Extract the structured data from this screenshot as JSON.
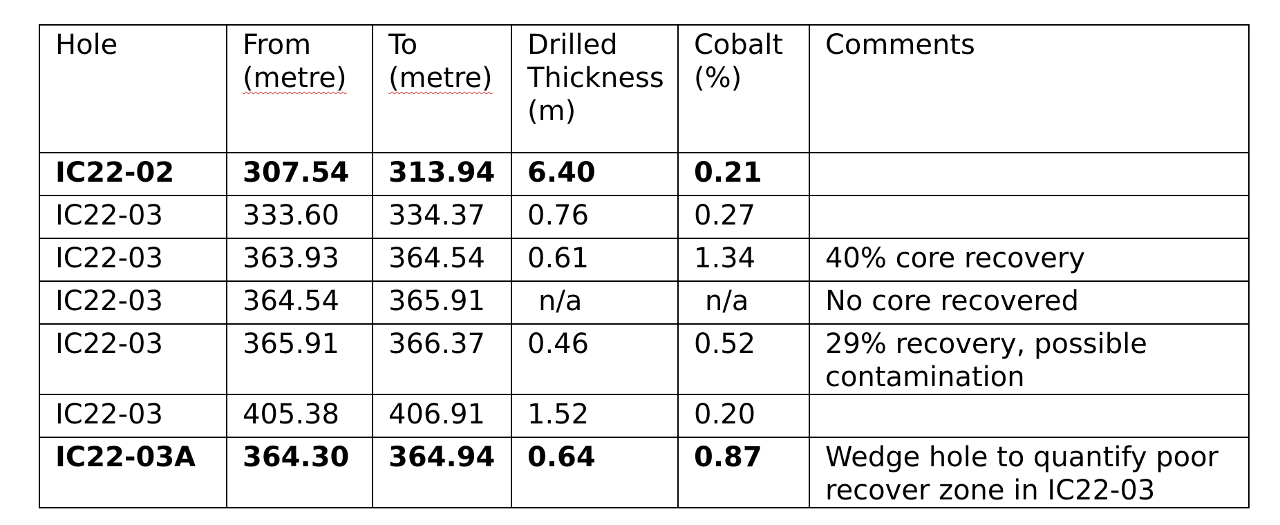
{
  "table": {
    "headers": [
      {
        "line1": "Hole",
        "line2": "",
        "line3": ""
      },
      {
        "line1": "From",
        "line2": "(metre)",
        "line3": ""
      },
      {
        "line1": "To",
        "line2": "(metre)",
        "line3": ""
      },
      {
        "line1": "Drilled",
        "line2": "Thickness",
        "line3": "(m)"
      },
      {
        "line1": "Cobalt",
        "line2": "(%)",
        "line3": ""
      },
      {
        "line1": "Comments",
        "line2": "",
        "line3": ""
      }
    ],
    "rows": [
      {
        "hole": "IC22-02",
        "from": "307.54",
        "to": "313.94",
        "thickness": "6.40",
        "cobalt": "0.21",
        "comment": "",
        "bold": true
      },
      {
        "hole": "IC22-03",
        "from": "333.60",
        "to": "334.37",
        "thickness": "0.76",
        "cobalt": "0.27",
        "comment": "",
        "bold": false
      },
      {
        "hole": "IC22-03",
        "from": "363.93",
        "to": "364.54",
        "thickness": "0.61",
        "cobalt": "1.34",
        "comment": "40% core recovery",
        "bold": false
      },
      {
        "hole": "IC22-03",
        "from": "364.54",
        "to": "365.91",
        "thickness": "n/a",
        "cobalt": "n/a",
        "comment": "No core recovered",
        "bold": false
      },
      {
        "hole": "IC22-03",
        "from": "365.91",
        "to": "366.37",
        "thickness": "0.46",
        "cobalt": "0.52",
        "comment": "29% recovery, possible contamination",
        "bold": false
      },
      {
        "hole": "IC22-03",
        "from": "405.38",
        "to": "406.91",
        "thickness": "1.52",
        "cobalt": "0.20",
        "comment": "",
        "bold": false
      },
      {
        "hole": "IC22-03A",
        "from": "364.30",
        "to": "364.94",
        "thickness": "0.64",
        "cobalt": "0.87",
        "comment": "Wedge hole to quantify poor recover zone in IC22-03",
        "bold": true
      }
    ]
  },
  "colors": {
    "border": "#000000",
    "spellcheck_underline": "#d23b3b"
  }
}
